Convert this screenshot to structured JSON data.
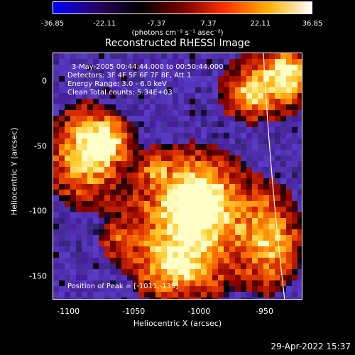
{
  "colorbar": {
    "ticks": [
      "-36.85",
      "-22.11",
      "-7.37",
      "7.37",
      "22.11",
      "36.85"
    ],
    "tick_values": [
      -36.85,
      -22.11,
      -7.37,
      7.37,
      22.11,
      36.85
    ],
    "unit_label": "(photons cm⁻² s⁻¹ asec⁻²)",
    "colors": [
      "#0000ff",
      "#2a0066",
      "#000000",
      "#7a0000",
      "#ff3300",
      "#ffb000",
      "#ffffff"
    ]
  },
  "title": "Reconstructed RHESSI Image",
  "annotations": {
    "time_range": "3-May-2005 00:44:44.000 to 00:50:44.000",
    "detectors": "Detectors: 3F 4F 5F 6F 7F 8F, Att 1",
    "energy": "Energy Range: 3.0 - 6.0 keV",
    "algorithm": "Clean     Total counts: 5.34E+03",
    "peak": "Position of Peak = [-1011,-139]"
  },
  "axes": {
    "xlabel": "Heliocentric X (arcsec)",
    "ylabel": "Heliocentric Y (arcsec)",
    "xticks": [
      "-1100",
      "-1050",
      "-1000",
      "-950"
    ],
    "xtick_values": [
      -1100,
      -1050,
      -1000,
      -950
    ],
    "yticks": [
      "0",
      "-50",
      "-100",
      "-150"
    ],
    "ytick_values": [
      0,
      -50,
      -100,
      -150
    ],
    "xlim": [
      -1112,
      -921
    ],
    "ylim": [
      -168,
      22
    ]
  },
  "timestamp": "29-Apr-2022 15:37"
}
